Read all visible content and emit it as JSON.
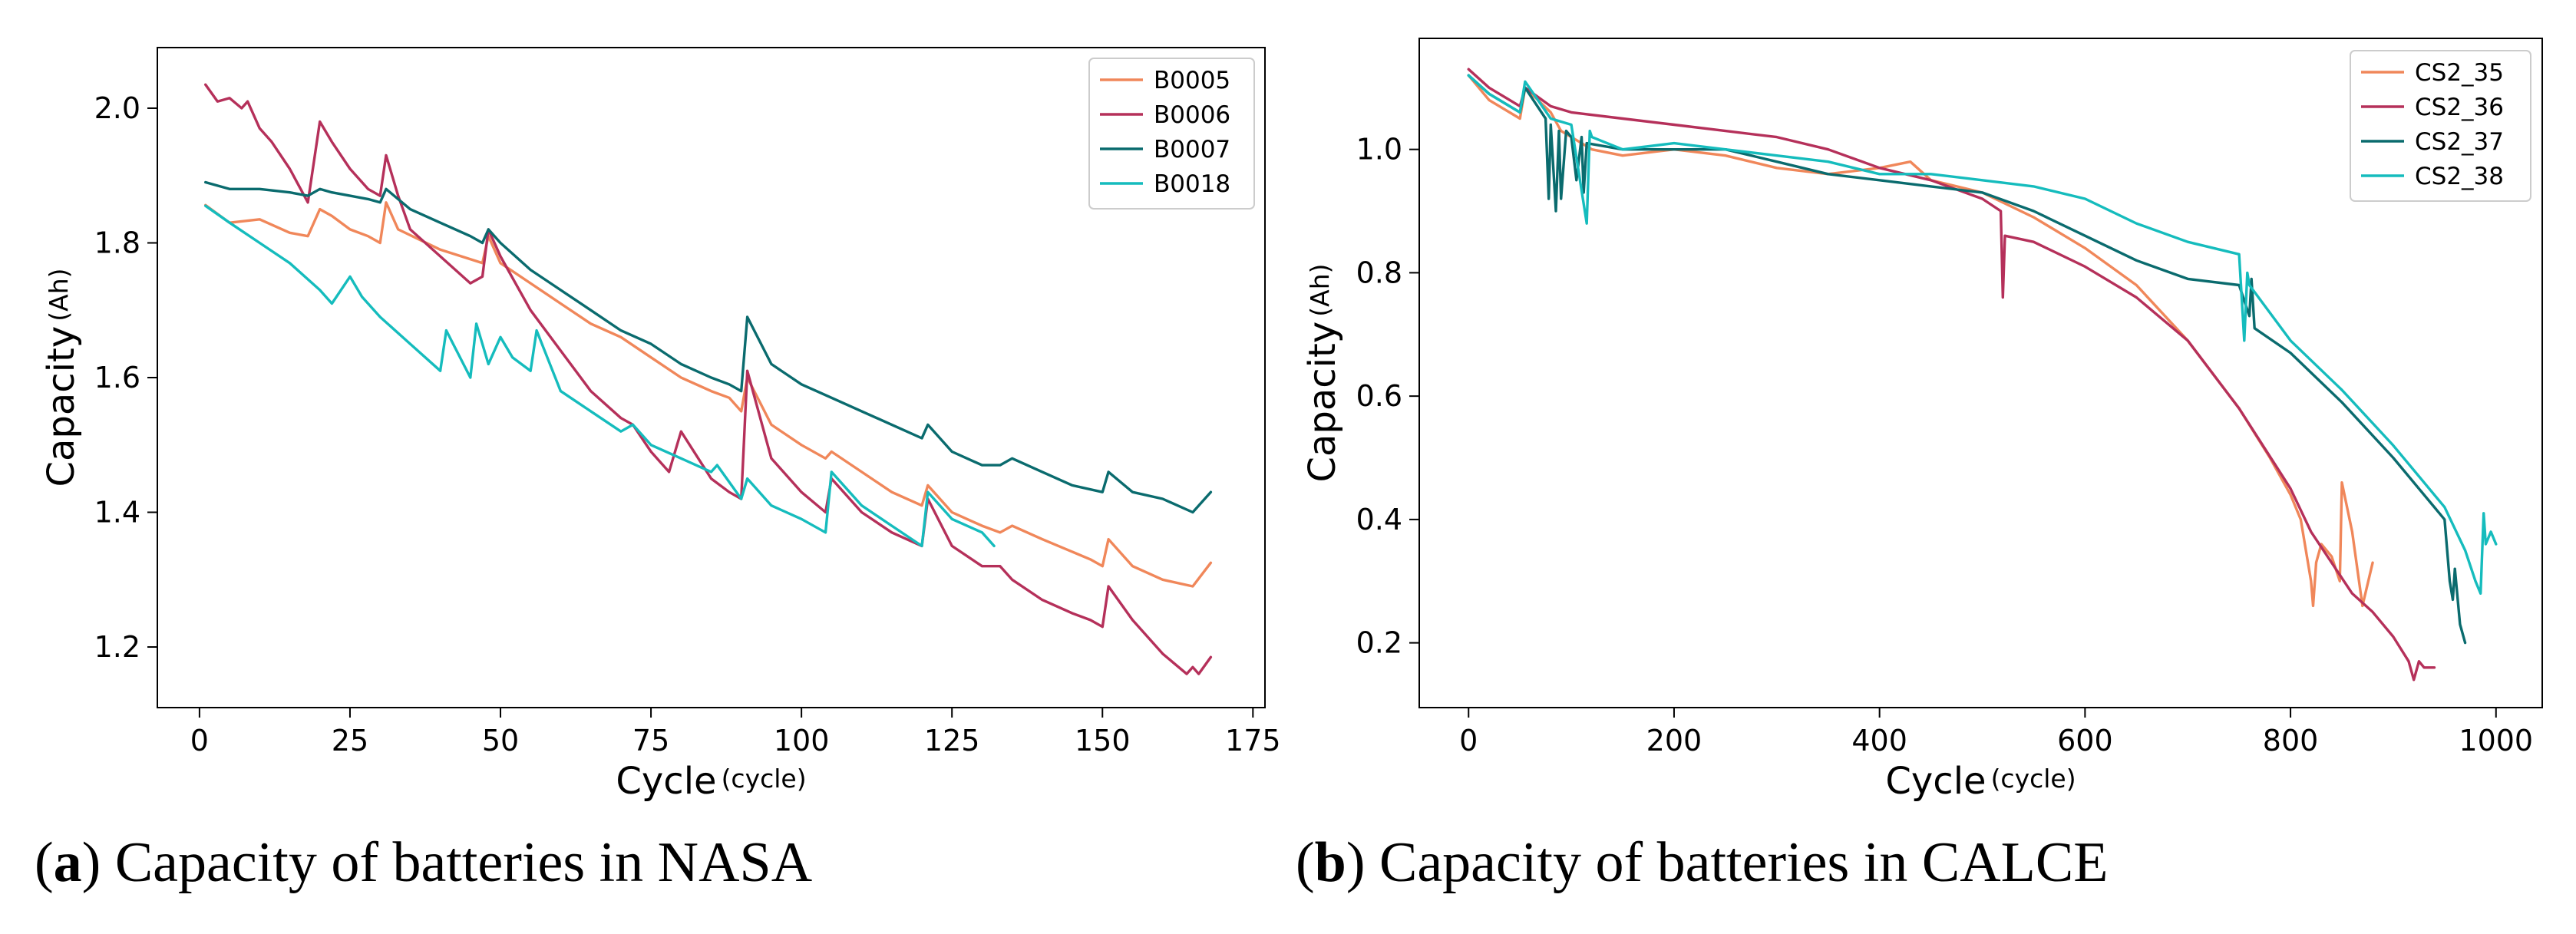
{
  "chart_data": [
    {
      "type": "line",
      "panel_label": "a",
      "caption": "Capacity of batteries in NASA",
      "xlabel": "Cycle",
      "xlabel_unit": "(cycle)",
      "ylabel": "Capacity",
      "ylabel_unit": "(Ah)",
      "xlim": [
        -7,
        177
      ],
      "ylim": [
        1.11,
        2.09
      ],
      "xticks": [
        0,
        25,
        50,
        75,
        100,
        125,
        150,
        175
      ],
      "yticks": [
        1.2,
        1.4,
        1.6,
        1.8,
        2.0
      ],
      "ytick_labels": [
        "1.2",
        "1.4",
        "1.6",
        "1.8",
        "2.0"
      ],
      "grid": false,
      "legend": "top-right",
      "series": [
        {
          "name": "B0005",
          "color": "#f0875a",
          "x": [
            1,
            5,
            10,
            15,
            18,
            20,
            22,
            25,
            28,
            30,
            31,
            33,
            40,
            47,
            48,
            50,
            55,
            60,
            65,
            70,
            75,
            80,
            85,
            88,
            90,
            91,
            95,
            100,
            104,
            105,
            110,
            115,
            120,
            121,
            125,
            130,
            133,
            135,
            140,
            148,
            150,
            151,
            155,
            160,
            165,
            168
          ],
          "y": [
            1.856,
            1.83,
            1.835,
            1.815,
            1.81,
            1.85,
            1.84,
            1.82,
            1.81,
            1.8,
            1.86,
            1.82,
            1.79,
            1.77,
            1.81,
            1.77,
            1.74,
            1.71,
            1.68,
            1.66,
            1.63,
            1.6,
            1.58,
            1.57,
            1.55,
            1.6,
            1.53,
            1.5,
            1.48,
            1.49,
            1.46,
            1.43,
            1.41,
            1.44,
            1.4,
            1.38,
            1.37,
            1.38,
            1.36,
            1.33,
            1.32,
            1.36,
            1.32,
            1.3,
            1.29,
            1.325
          ]
        },
        {
          "name": "B0006",
          "color": "#b5305a",
          "x": [
            1,
            3,
            5,
            7,
            8,
            10,
            12,
            15,
            18,
            20,
            22,
            25,
            28,
            30,
            31,
            33,
            35,
            40,
            45,
            47,
            48,
            50,
            55,
            60,
            65,
            70,
            72,
            75,
            78,
            80,
            85,
            88,
            90,
            91,
            95,
            100,
            104,
            105,
            110,
            115,
            120,
            121,
            125,
            130,
            133,
            135,
            140,
            145,
            148,
            150,
            151,
            155,
            160,
            164,
            165,
            166,
            168
          ],
          "y": [
            2.035,
            2.01,
            2.015,
            2.0,
            2.01,
            1.97,
            1.95,
            1.91,
            1.86,
            1.98,
            1.95,
            1.91,
            1.88,
            1.87,
            1.93,
            1.87,
            1.82,
            1.78,
            1.74,
            1.75,
            1.82,
            1.78,
            1.7,
            1.64,
            1.58,
            1.54,
            1.53,
            1.49,
            1.46,
            1.52,
            1.45,
            1.43,
            1.42,
            1.61,
            1.48,
            1.43,
            1.4,
            1.45,
            1.4,
            1.37,
            1.35,
            1.42,
            1.35,
            1.32,
            1.32,
            1.3,
            1.27,
            1.25,
            1.24,
            1.23,
            1.29,
            1.24,
            1.19,
            1.16,
            1.17,
            1.16,
            1.185
          ]
        },
        {
          "name": "B0007",
          "color": "#0a6b6e",
          "x": [
            1,
            5,
            10,
            15,
            18,
            20,
            22,
            25,
            28,
            30,
            31,
            35,
            40,
            45,
            47,
            48,
            50,
            55,
            60,
            65,
            70,
            75,
            80,
            85,
            88,
            90,
            91,
            95,
            100,
            105,
            110,
            115,
            120,
            121,
            125,
            130,
            133,
            135,
            140,
            145,
            150,
            151,
            155,
            160,
            165,
            166,
            168
          ],
          "y": [
            1.89,
            1.88,
            1.88,
            1.875,
            1.87,
            1.88,
            1.875,
            1.87,
            1.865,
            1.86,
            1.88,
            1.85,
            1.83,
            1.81,
            1.8,
            1.82,
            1.8,
            1.76,
            1.73,
            1.7,
            1.67,
            1.65,
            1.62,
            1.6,
            1.59,
            1.58,
            1.69,
            1.62,
            1.59,
            1.57,
            1.55,
            1.53,
            1.51,
            1.53,
            1.49,
            1.47,
            1.47,
            1.48,
            1.46,
            1.44,
            1.43,
            1.46,
            1.43,
            1.42,
            1.4,
            1.41,
            1.43
          ]
        },
        {
          "name": "B0018",
          "color": "#15bcbd",
          "x": [
            1,
            5,
            10,
            15,
            20,
            22,
            25,
            27,
            30,
            35,
            40,
            41,
            45,
            46,
            48,
            50,
            52,
            55,
            56,
            60,
            65,
            70,
            72,
            75,
            80,
            85,
            86,
            90,
            91,
            95,
            100,
            104,
            105,
            110,
            115,
            120,
            121,
            125,
            130,
            132
          ],
          "y": [
            1.855,
            1.83,
            1.8,
            1.77,
            1.73,
            1.71,
            1.75,
            1.72,
            1.69,
            1.65,
            1.61,
            1.67,
            1.6,
            1.68,
            1.62,
            1.66,
            1.63,
            1.61,
            1.67,
            1.58,
            1.55,
            1.52,
            1.53,
            1.5,
            1.48,
            1.46,
            1.47,
            1.42,
            1.45,
            1.41,
            1.39,
            1.37,
            1.46,
            1.41,
            1.38,
            1.35,
            1.43,
            1.39,
            1.37,
            1.35
          ]
        }
      ]
    },
    {
      "type": "line",
      "panel_label": "b",
      "caption": "Capacity of batteries in CALCE",
      "xlabel": "Cycle",
      "xlabel_unit": "(cycle)",
      "ylabel": "Capacity",
      "ylabel_unit": "(Ah)",
      "xlim": [
        -48,
        1045
      ],
      "ylim": [
        0.095,
        1.18
      ],
      "xticks": [
        0,
        200,
        400,
        600,
        800,
        1000
      ],
      "yticks": [
        0.2,
        0.4,
        0.6,
        0.8,
        1.0
      ],
      "ytick_labels": [
        "0.2",
        "0.4",
        "0.6",
        "0.8",
        "1.0"
      ],
      "grid": false,
      "legend": "top-right",
      "series": [
        {
          "name": "CS2_35",
          "color": "#f0875a",
          "x": [
            0,
            20,
            50,
            55,
            80,
            90,
            100,
            110,
            120,
            150,
            200,
            250,
            300,
            350,
            400,
            430,
            450,
            500,
            550,
            600,
            650,
            700,
            750,
            780,
            800,
            810,
            820,
            822,
            825,
            830,
            840,
            848,
            850,
            860,
            870,
            880
          ],
          "y": [
            1.12,
            1.08,
            1.05,
            1.1,
            1.06,
            1.03,
            1.02,
            1.01,
            1.0,
            0.99,
            1.0,
            0.99,
            0.97,
            0.96,
            0.97,
            0.98,
            0.95,
            0.93,
            0.89,
            0.84,
            0.78,
            0.69,
            0.58,
            0.5,
            0.44,
            0.4,
            0.3,
            0.26,
            0.33,
            0.36,
            0.34,
            0.3,
            0.46,
            0.38,
            0.26,
            0.33
          ]
        },
        {
          "name": "CS2_36",
          "color": "#b5305a",
          "x": [
            0,
            20,
            50,
            55,
            80,
            100,
            150,
            200,
            250,
            300,
            350,
            400,
            450,
            500,
            518,
            520,
            522,
            550,
            600,
            650,
            700,
            750,
            800,
            820,
            840,
            860,
            880,
            900,
            915,
            920,
            925,
            930,
            940
          ],
          "y": [
            1.13,
            1.1,
            1.07,
            1.1,
            1.07,
            1.06,
            1.05,
            1.04,
            1.03,
            1.02,
            1.0,
            0.97,
            0.95,
            0.92,
            0.9,
            0.76,
            0.86,
            0.85,
            0.81,
            0.76,
            0.69,
            0.58,
            0.45,
            0.38,
            0.33,
            0.28,
            0.25,
            0.21,
            0.17,
            0.14,
            0.17,
            0.16,
            0.16
          ]
        },
        {
          "name": "CS2_37",
          "color": "#0a6b6e",
          "x": [
            0,
            20,
            50,
            55,
            75,
            78,
            80,
            85,
            88,
            90,
            95,
            100,
            105,
            110,
            112,
            115,
            150,
            200,
            250,
            300,
            350,
            400,
            450,
            500,
            550,
            600,
            650,
            700,
            750,
            760,
            762,
            765,
            800,
            850,
            900,
            950,
            955,
            958,
            960,
            965,
            970
          ],
          "y": [
            1.12,
            1.09,
            1.06,
            1.1,
            1.05,
            0.92,
            1.04,
            0.9,
            1.03,
            0.92,
            1.03,
            1.02,
            0.95,
            1.02,
            0.93,
            1.01,
            1.0,
            1.0,
            1.0,
            0.98,
            0.96,
            0.95,
            0.94,
            0.93,
            0.9,
            0.86,
            0.82,
            0.79,
            0.78,
            0.73,
            0.79,
            0.71,
            0.67,
            0.59,
            0.5,
            0.4,
            0.3,
            0.27,
            0.32,
            0.23,
            0.2
          ]
        },
        {
          "name": "CS2_38",
          "color": "#15bcbd",
          "x": [
            0,
            20,
            50,
            55,
            80,
            100,
            115,
            118,
            120,
            150,
            200,
            250,
            300,
            350,
            400,
            450,
            500,
            550,
            600,
            650,
            700,
            750,
            755,
            758,
            760,
            800,
            850,
            900,
            950,
            970,
            980,
            985,
            988,
            990,
            995,
            1000
          ],
          "y": [
            1.12,
            1.09,
            1.06,
            1.11,
            1.05,
            1.04,
            0.88,
            1.03,
            1.02,
            1.0,
            1.01,
            1.0,
            0.99,
            0.98,
            0.96,
            0.96,
            0.95,
            0.94,
            0.92,
            0.88,
            0.85,
            0.83,
            0.69,
            0.8,
            0.78,
            0.69,
            0.61,
            0.52,
            0.42,
            0.35,
            0.3,
            0.28,
            0.41,
            0.36,
            0.38,
            0.36
          ]
        }
      ]
    }
  ]
}
